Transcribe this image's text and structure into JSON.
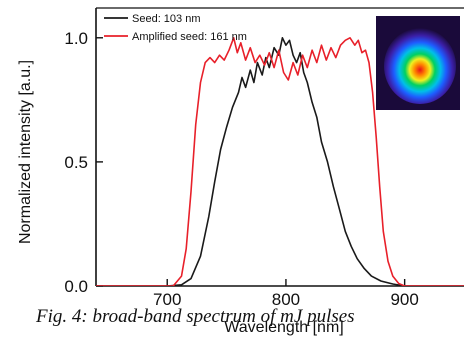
{
  "chart_data": {
    "type": "line",
    "xlabel": "Wavelength [nm]",
    "ylabel": "Normalized intensity [a.u.]",
    "xlim": [
      640,
      950
    ],
    "ylim": [
      0.0,
      1.12
    ],
    "x_ticks": [
      700,
      800,
      900
    ],
    "y_ticks": [
      0.0,
      0.5,
      1.0
    ],
    "y_tick_labels": [
      "0.0",
      "0.5",
      "1.0"
    ],
    "grid": false,
    "legend_position": "top-left",
    "series": [
      {
        "name": "Seed: 103 nm",
        "color": "#1a1a1a",
        "points": [
          [
            640,
            0
          ],
          [
            700,
            0
          ],
          [
            712,
            0.005
          ],
          [
            720,
            0.03
          ],
          [
            728,
            0.12
          ],
          [
            735,
            0.28
          ],
          [
            740,
            0.42
          ],
          [
            745,
            0.55
          ],
          [
            750,
            0.64
          ],
          [
            755,
            0.72
          ],
          [
            760,
            0.78
          ],
          [
            763,
            0.84
          ],
          [
            766,
            0.8
          ],
          [
            770,
            0.87
          ],
          [
            773,
            0.82
          ],
          [
            776,
            0.9
          ],
          [
            780,
            0.85
          ],
          [
            783,
            0.92
          ],
          [
            786,
            0.88
          ],
          [
            790,
            0.96
          ],
          [
            794,
            0.93
          ],
          [
            797,
            1.0
          ],
          [
            800,
            0.97
          ],
          [
            803,
            0.99
          ],
          [
            806,
            0.93
          ],
          [
            809,
            0.9
          ],
          [
            812,
            0.94
          ],
          [
            815,
            0.86
          ],
          [
            818,
            0.82
          ],
          [
            822,
            0.74
          ],
          [
            826,
            0.68
          ],
          [
            830,
            0.58
          ],
          [
            835,
            0.5
          ],
          [
            840,
            0.4
          ],
          [
            845,
            0.31
          ],
          [
            850,
            0.22
          ],
          [
            855,
            0.16
          ],
          [
            860,
            0.11
          ],
          [
            866,
            0.07
          ],
          [
            872,
            0.04
          ],
          [
            880,
            0.02
          ],
          [
            890,
            0.008
          ],
          [
            900,
            0
          ],
          [
            950,
            0
          ]
        ]
      },
      {
        "name": "Amplified seed: 161 nm",
        "color": "#e8202a",
        "points": [
          [
            640,
            0
          ],
          [
            705,
            0
          ],
          [
            712,
            0.04
          ],
          [
            716,
            0.15
          ],
          [
            720,
            0.38
          ],
          [
            724,
            0.65
          ],
          [
            728,
            0.82
          ],
          [
            732,
            0.9
          ],
          [
            736,
            0.92
          ],
          [
            740,
            0.9
          ],
          [
            744,
            0.93
          ],
          [
            748,
            0.91
          ],
          [
            752,
            0.95
          ],
          [
            756,
            1.0
          ],
          [
            759,
            0.94
          ],
          [
            762,
            0.98
          ],
          [
            766,
            0.91
          ],
          [
            770,
            0.96
          ],
          [
            774,
            0.9
          ],
          [
            778,
            0.93
          ],
          [
            782,
            0.89
          ],
          [
            786,
            0.94
          ],
          [
            790,
            0.88
          ],
          [
            794,
            0.95
          ],
          [
            798,
            0.86
          ],
          [
            802,
            0.83
          ],
          [
            806,
            0.9
          ],
          [
            810,
            0.85
          ],
          [
            814,
            0.93
          ],
          [
            818,
            0.88
          ],
          [
            822,
            0.95
          ],
          [
            826,
            0.9
          ],
          [
            830,
            0.97
          ],
          [
            834,
            0.91
          ],
          [
            838,
            0.96
          ],
          [
            842,
            0.92
          ],
          [
            846,
            0.97
          ],
          [
            850,
            0.99
          ],
          [
            854,
            1.0
          ],
          [
            858,
            0.97
          ],
          [
            861,
            0.99
          ],
          [
            864,
            0.94
          ],
          [
            867,
            0.95
          ],
          [
            870,
            0.9
          ],
          [
            873,
            0.78
          ],
          [
            876,
            0.6
          ],
          [
            879,
            0.4
          ],
          [
            882,
            0.22
          ],
          [
            886,
            0.1
          ],
          [
            890,
            0.04
          ],
          [
            895,
            0.01
          ],
          [
            900,
            0
          ],
          [
            950,
            0
          ]
        ]
      }
    ]
  },
  "inset": {
    "title": "beam profile inset",
    "colors": [
      "#1a0a3a",
      "#3b1fa8",
      "#1e5cff",
      "#00c0e8",
      "#00d060",
      "#f0f020",
      "#ff8a00",
      "#e8101a"
    ]
  },
  "caption": "Fig. 4: broad-band spectrum of mJ pulses"
}
